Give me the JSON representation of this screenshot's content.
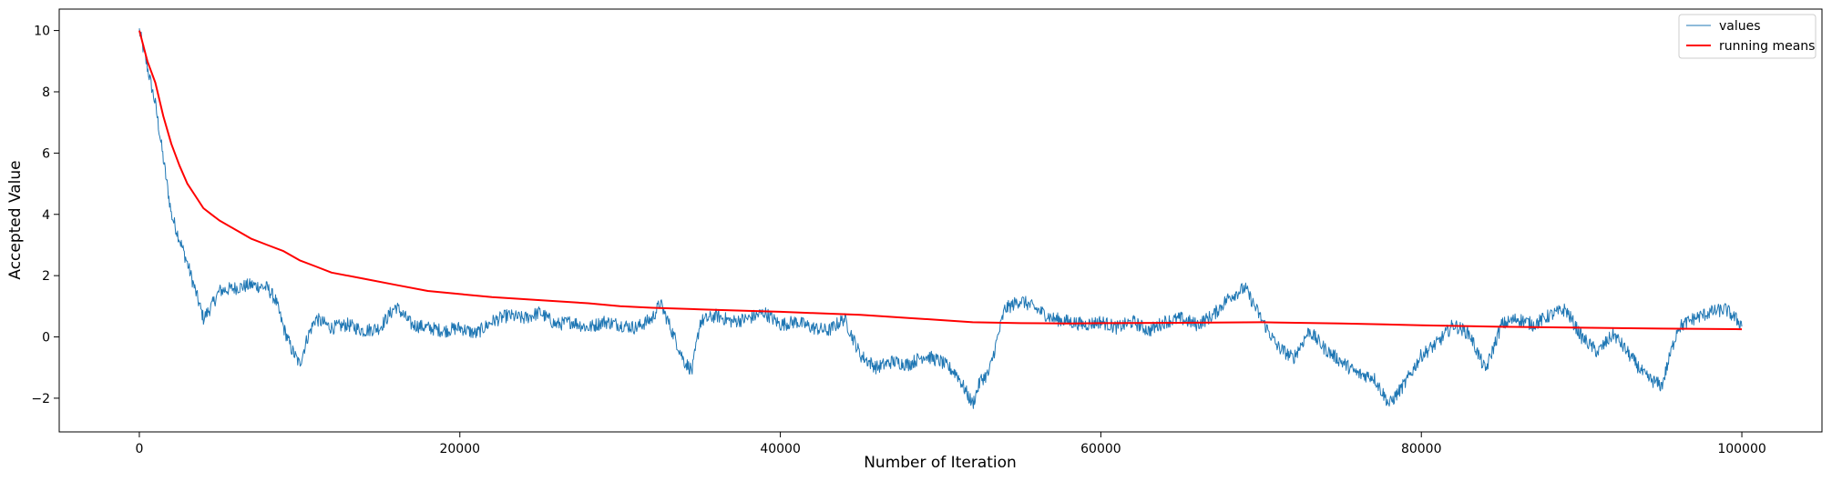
{
  "chart_data": {
    "type": "line",
    "xlabel": "Number of Iteration",
    "ylabel": "Accepted Value",
    "xlim": [
      -5000,
      105000
    ],
    "ylim": [
      -3.1,
      10.7
    ],
    "xticks": [
      0,
      20000,
      40000,
      60000,
      80000,
      100000
    ],
    "xtick_labels": [
      "0",
      "20000",
      "40000",
      "60000",
      "80000",
      "100000"
    ],
    "yticks": [
      -2,
      0,
      2,
      4,
      6,
      8,
      10
    ],
    "ytick_labels": [
      "−2",
      "0",
      "2",
      "4",
      "6",
      "8",
      "10"
    ],
    "grid": false,
    "legend": {
      "placement": "top-right"
    },
    "series": [
      {
        "name": "values",
        "color": "#1f77b4",
        "x": [
          0,
          500,
          1000,
          1500,
          2000,
          2500,
          3000,
          3500,
          4000,
          4500,
          5000,
          6000,
          7000,
          8000,
          8500,
          9000,
          9500,
          10000,
          10500,
          11000,
          12000,
          13000,
          14000,
          15000,
          16000,
          17000,
          18000,
          19000,
          20000,
          21000,
          22000,
          23000,
          24000,
          25000,
          26000,
          27000,
          28000,
          29000,
          30000,
          31000,
          32000,
          32500,
          33000,
          34000,
          34500,
          35000,
          36000,
          37000,
          38000,
          39000,
          40000,
          41000,
          42000,
          43000,
          44000,
          45000,
          46000,
          47000,
          48000,
          49000,
          50000,
          51000,
          52000,
          52500,
          53000,
          54000,
          55000,
          56000,
          57000,
          58000,
          59000,
          60000,
          61000,
          62000,
          63000,
          64000,
          65000,
          66000,
          67000,
          68000,
          69000,
          70000,
          71000,
          72000,
          73000,
          74000,
          75000,
          76000,
          77000,
          78000,
          79000,
          80000,
          81000,
          82000,
          83000,
          84000,
          85000,
          86000,
          87000,
          88000,
          89000,
          90000,
          91000,
          92000,
          93000,
          94000,
          95000,
          96000,
          97000,
          98000,
          99000,
          100000
        ],
        "y": [
          10.0,
          8.8,
          7.6,
          5.8,
          4.0,
          3.2,
          2.4,
          1.5,
          0.6,
          1.0,
          1.5,
          1.6,
          1.7,
          1.6,
          1.2,
          0.3,
          -0.4,
          -0.9,
          0.0,
          0.6,
          0.3,
          0.4,
          0.2,
          0.3,
          1.0,
          0.4,
          0.3,
          0.2,
          0.3,
          0.1,
          0.5,
          0.7,
          0.6,
          0.8,
          0.4,
          0.5,
          0.3,
          0.5,
          0.4,
          0.3,
          0.6,
          1.1,
          0.5,
          -0.8,
          -1.1,
          0.5,
          0.7,
          0.5,
          0.6,
          0.8,
          0.4,
          0.5,
          0.3,
          0.2,
          0.6,
          -0.6,
          -1.0,
          -0.8,
          -0.9,
          -0.6,
          -0.8,
          -1.2,
          -2.2,
          -1.4,
          -1.2,
          0.9,
          1.2,
          0.9,
          0.6,
          0.5,
          0.4,
          0.5,
          0.3,
          0.5,
          0.2,
          0.5,
          0.6,
          0.4,
          0.7,
          1.3,
          1.6,
          0.6,
          -0.3,
          -0.7,
          0.2,
          -0.4,
          -0.8,
          -1.2,
          -1.3,
          -2.2,
          -1.5,
          -0.6,
          -0.2,
          0.4,
          0.1,
          -1.1,
          0.4,
          0.6,
          0.4,
          0.7,
          0.9,
          0.0,
          -0.5,
          0.1,
          -0.6,
          -1.3,
          -1.6,
          0.3,
          0.6,
          0.8,
          0.9,
          0.4
        ]
      },
      {
        "name": "running means",
        "color": "#ff0000",
        "x": [
          0,
          500,
          1000,
          1500,
          2000,
          2500,
          3000,
          3500,
          4000,
          4500,
          5000,
          6000,
          7000,
          8000,
          9000,
          10000,
          11000,
          12000,
          14000,
          16000,
          18000,
          20000,
          22000,
          25000,
          28000,
          30000,
          32000,
          35000,
          38000,
          40000,
          42000,
          45000,
          48000,
          50000,
          52000,
          55000,
          58000,
          60000,
          65000,
          70000,
          75000,
          80000,
          85000,
          90000,
          95000,
          100000
        ],
        "y": [
          10.0,
          9.0,
          8.3,
          7.2,
          6.3,
          5.6,
          5.0,
          4.6,
          4.2,
          4.0,
          3.8,
          3.5,
          3.2,
          3.0,
          2.8,
          2.5,
          2.3,
          2.1,
          1.9,
          1.7,
          1.5,
          1.4,
          1.3,
          1.2,
          1.1,
          1.0,
          0.95,
          0.9,
          0.85,
          0.82,
          0.78,
          0.72,
          0.62,
          0.55,
          0.48,
          0.45,
          0.44,
          0.45,
          0.46,
          0.48,
          0.44,
          0.38,
          0.33,
          0.3,
          0.27,
          0.25
        ]
      }
    ]
  }
}
